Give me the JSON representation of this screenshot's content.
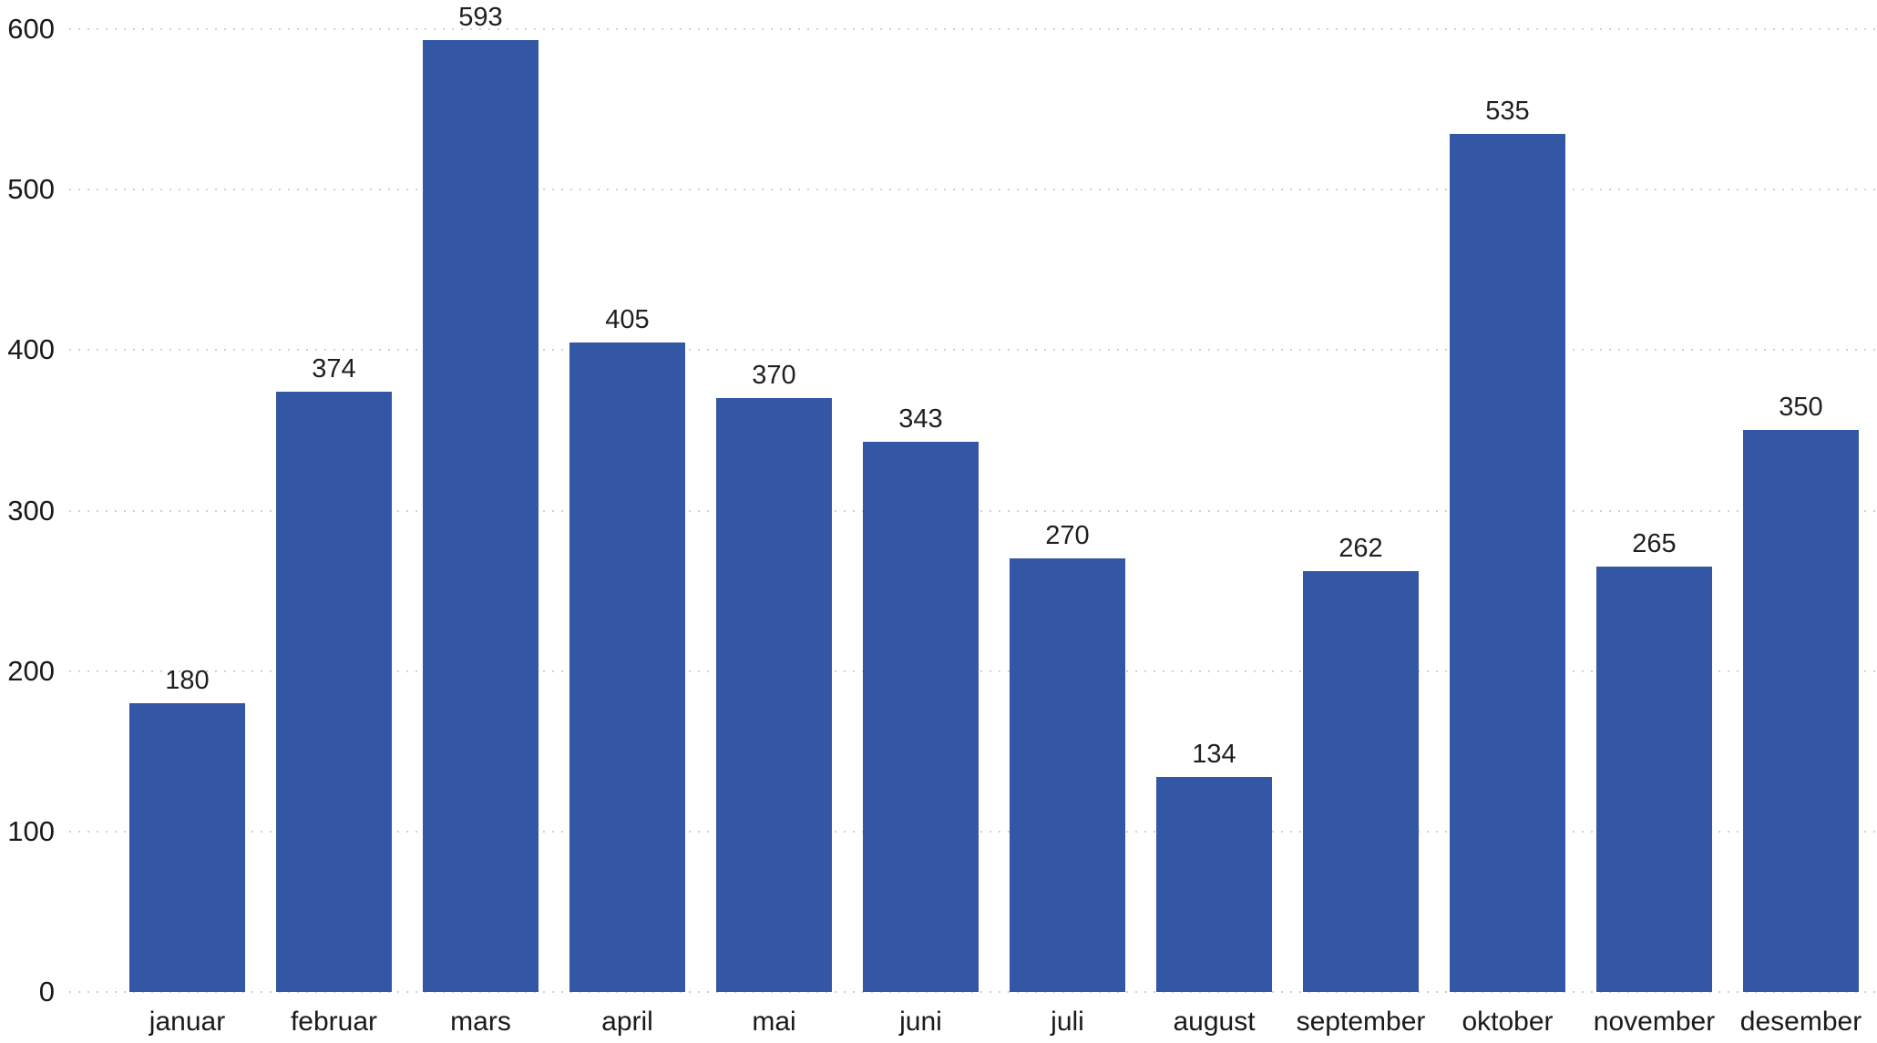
{
  "chart_data": {
    "type": "bar",
    "title": "",
    "categories": [
      "januar",
      "februar",
      "mars",
      "april",
      "mai",
      "juni",
      "juli",
      "august",
      "september",
      "oktober",
      "november",
      "desember"
    ],
    "values": [
      180,
      374,
      593,
      405,
      370,
      343,
      270,
      134,
      262,
      535,
      265,
      350
    ],
    "xlabel": "",
    "ylabel": "",
    "ylim": [
      0,
      600
    ],
    "yticks": [
      0,
      100,
      200,
      300,
      400,
      500,
      600
    ],
    "grid": "horizontal-dotted",
    "legend": "none",
    "data_labels": true,
    "colors": {
      "bar": "#3357a5",
      "gridline": "#d0d0d0",
      "axis_text": "#1a1a1a",
      "label_text": "#1f1f1f",
      "background": "#ffffff"
    }
  }
}
